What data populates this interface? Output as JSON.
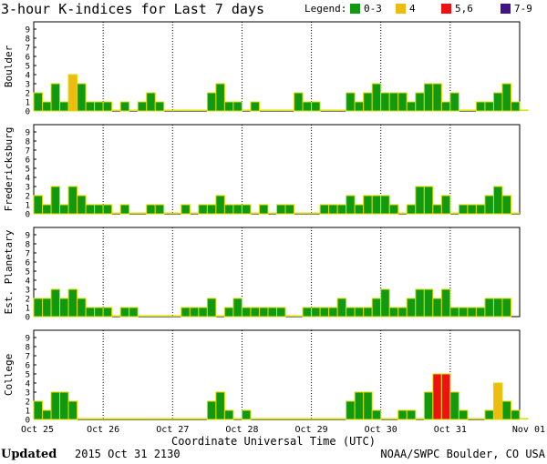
{
  "title": "3-hour K-indices for Last 7 days",
  "legend": {
    "label": "Legend:",
    "items": [
      {
        "label": "0-3",
        "color": "#119911"
      },
      {
        "label": "4",
        "color": "#eebb11"
      },
      {
        "label": "5,6",
        "color": "#ee1111"
      },
      {
        "label": "7-9",
        "color": "#441188"
      }
    ]
  },
  "footer": {
    "updated_label": "Updated",
    "updated_value": "2015 Oct 31 2130",
    "source": "NOAA/SWPC Boulder, CO USA"
  },
  "chart_data": {
    "type": "bar",
    "xlabel": "Coordinate Universal Time (UTC)",
    "x_ticks": [
      "Oct 25",
      "Oct 26",
      "Oct 27",
      "Oct 28",
      "Oct 29",
      "Oct 30",
      "Oct 31",
      "Nov 01"
    ],
    "ylim": [
      0,
      9
    ],
    "y_ticks": [
      0,
      1,
      2,
      3,
      4,
      5,
      6,
      7,
      8,
      9
    ],
    "bins_per_day": 8,
    "series": [
      {
        "name": "Boulder",
        "values": [
          2,
          1,
          3,
          1,
          4,
          3,
          1,
          1,
          1,
          0,
          1,
          0,
          1,
          2,
          1,
          0,
          0,
          0,
          0,
          0,
          2,
          3,
          1,
          1,
          0,
          1,
          0,
          0,
          0,
          0,
          2,
          1,
          1,
          0,
          0,
          0,
          2,
          1,
          2,
          3,
          2,
          2,
          2,
          1,
          2,
          3,
          3,
          1,
          2,
          0,
          0,
          1,
          1,
          2,
          3,
          1,
          0
        ]
      },
      {
        "name": "Fredericksburg",
        "values": [
          2,
          1,
          3,
          1,
          3,
          2,
          1,
          1,
          1,
          0,
          1,
          0,
          0,
          1,
          1,
          0,
          0,
          1,
          0,
          1,
          1,
          2,
          1,
          1,
          1,
          0,
          1,
          0,
          1,
          1,
          0,
          0,
          0,
          1,
          1,
          1,
          2,
          1,
          2,
          2,
          2,
          1,
          0,
          1,
          3,
          3,
          1,
          2,
          0,
          1,
          1,
          1,
          2,
          3,
          2,
          0
        ]
      },
      {
        "name": "Est. Planetary",
        "values": [
          2,
          2,
          3,
          2,
          3,
          2,
          1,
          1,
          1,
          0,
          1,
          1,
          0,
          0,
          0,
          0,
          0,
          1,
          1,
          1,
          2,
          0,
          1,
          2,
          1,
          1,
          1,
          1,
          1,
          0,
          0,
          1,
          1,
          1,
          1,
          2,
          1,
          1,
          1,
          2,
          3,
          1,
          1,
          2,
          3,
          3,
          2,
          3,
          1,
          1,
          1,
          1,
          2,
          2,
          2
        ]
      },
      {
        "name": "College",
        "values": [
          2,
          1,
          3,
          3,
          2,
          0,
          0,
          0,
          0,
          0,
          0,
          0,
          0,
          0,
          0,
          0,
          0,
          0,
          0,
          0,
          2,
          3,
          1,
          0,
          1,
          0,
          0,
          0,
          0,
          0,
          0,
          0,
          0,
          0,
          0,
          0,
          2,
          3,
          3,
          1,
          0,
          0,
          1,
          1,
          0,
          3,
          5,
          5,
          3,
          1,
          0,
          0,
          1,
          4,
          2,
          1,
          0
        ]
      }
    ]
  }
}
